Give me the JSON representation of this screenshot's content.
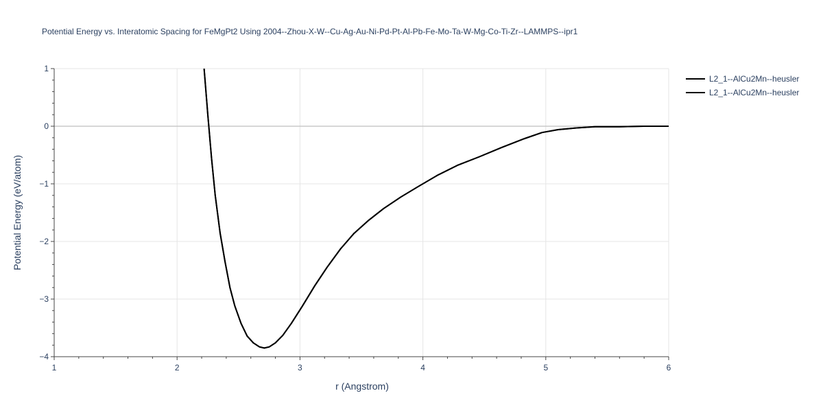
{
  "chart_data": {
    "type": "line",
    "title": "Potential Energy vs. Interatomic Spacing for FeMgPt2 Using 2004--Zhou-X-W--Cu-Ag-Au-Ni-Pd-Pt-Al-Pb-Fe-Mo-Ta-W-Mg-Co-Ti-Zr--LAMMPS--ipr1",
    "xlabel": "r (Angstrom)",
    "ylabel": "Potential Energy (eV/atom)",
    "xlim": [
      1,
      6
    ],
    "ylim": [
      -4,
      1
    ],
    "x_ticks": [
      1,
      2,
      3,
      4,
      5,
      6
    ],
    "x_tick_labels": [
      "1",
      "2",
      "3",
      "4",
      "5",
      "6"
    ],
    "y_ticks": [
      1,
      0,
      -1,
      -2,
      -3,
      -4
    ],
    "y_tick_labels": [
      "1",
      "0",
      "−1",
      "−2",
      "−3",
      "−4"
    ],
    "grid": true,
    "legend_position": "top-right",
    "series": [
      {
        "name": "L2_1--AlCu2Mn--heusler",
        "color": "#000000",
        "x": [
          2.22,
          2.25,
          2.28,
          2.31,
          2.35,
          2.39,
          2.43,
          2.47,
          2.52,
          2.57,
          2.62,
          2.67,
          2.71,
          2.75,
          2.8,
          2.86,
          2.93,
          3.02,
          3.12,
          3.22,
          3.33,
          3.44,
          3.56,
          3.68,
          3.82,
          3.96,
          4.12,
          4.28,
          4.46,
          4.64,
          4.82,
          4.97,
          5.1,
          5.25,
          5.4,
          5.6,
          5.8,
          6.0
        ],
        "y": [
          1.0,
          0.2,
          -0.55,
          -1.2,
          -1.85,
          -2.35,
          -2.8,
          -3.12,
          -3.42,
          -3.64,
          -3.76,
          -3.83,
          -3.85,
          -3.83,
          -3.76,
          -3.63,
          -3.42,
          -3.12,
          -2.77,
          -2.45,
          -2.13,
          -1.86,
          -1.63,
          -1.43,
          -1.23,
          -1.05,
          -0.85,
          -0.68,
          -0.53,
          -0.37,
          -0.22,
          -0.11,
          -0.06,
          -0.03,
          -0.01,
          -0.01,
          0.0,
          0.0
        ]
      },
      {
        "name": "L2_1--AlCu2Mn--heusler",
        "color": "#000000",
        "x": [
          2.22,
          2.25,
          2.28,
          2.31,
          2.35,
          2.39,
          2.43,
          2.47,
          2.52,
          2.57,
          2.62,
          2.67,
          2.71,
          2.75,
          2.8,
          2.86,
          2.93,
          3.02,
          3.12,
          3.22,
          3.33,
          3.44,
          3.56,
          3.68,
          3.82,
          3.96,
          4.12,
          4.28,
          4.46,
          4.64,
          4.82,
          4.97,
          5.1,
          5.25,
          5.4,
          5.6,
          5.8,
          6.0
        ],
        "y": [
          1.0,
          0.2,
          -0.55,
          -1.2,
          -1.85,
          -2.35,
          -2.8,
          -3.12,
          -3.42,
          -3.64,
          -3.76,
          -3.83,
          -3.85,
          -3.83,
          -3.76,
          -3.63,
          -3.42,
          -3.12,
          -2.77,
          -2.45,
          -2.13,
          -1.86,
          -1.63,
          -1.43,
          -1.23,
          -1.05,
          -0.85,
          -0.68,
          -0.53,
          -0.37,
          -0.22,
          -0.11,
          -0.06,
          -0.03,
          -0.01,
          -0.01,
          0.0,
          0.0
        ]
      }
    ]
  }
}
